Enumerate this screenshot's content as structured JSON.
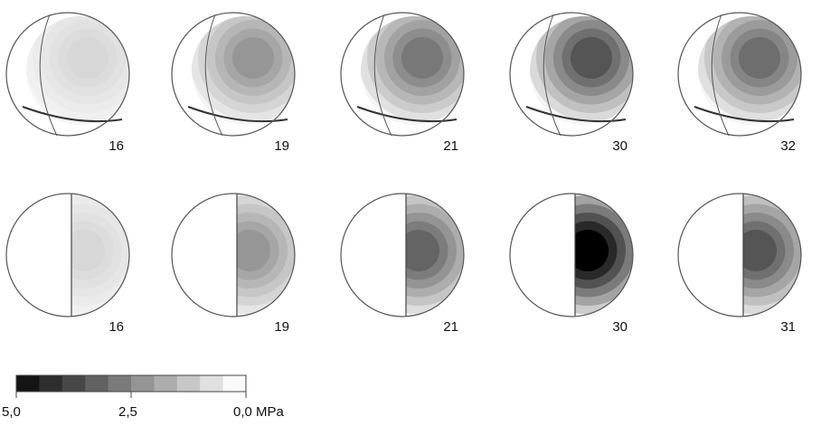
{
  "rows": [
    [
      16,
      19,
      21,
      30,
      32
    ],
    [
      16,
      19,
      21,
      30,
      31
    ]
  ],
  "colorbar": {
    "labels": [
      "5,0",
      "2,5",
      "0,0 MPa"
    ]
  }
}
